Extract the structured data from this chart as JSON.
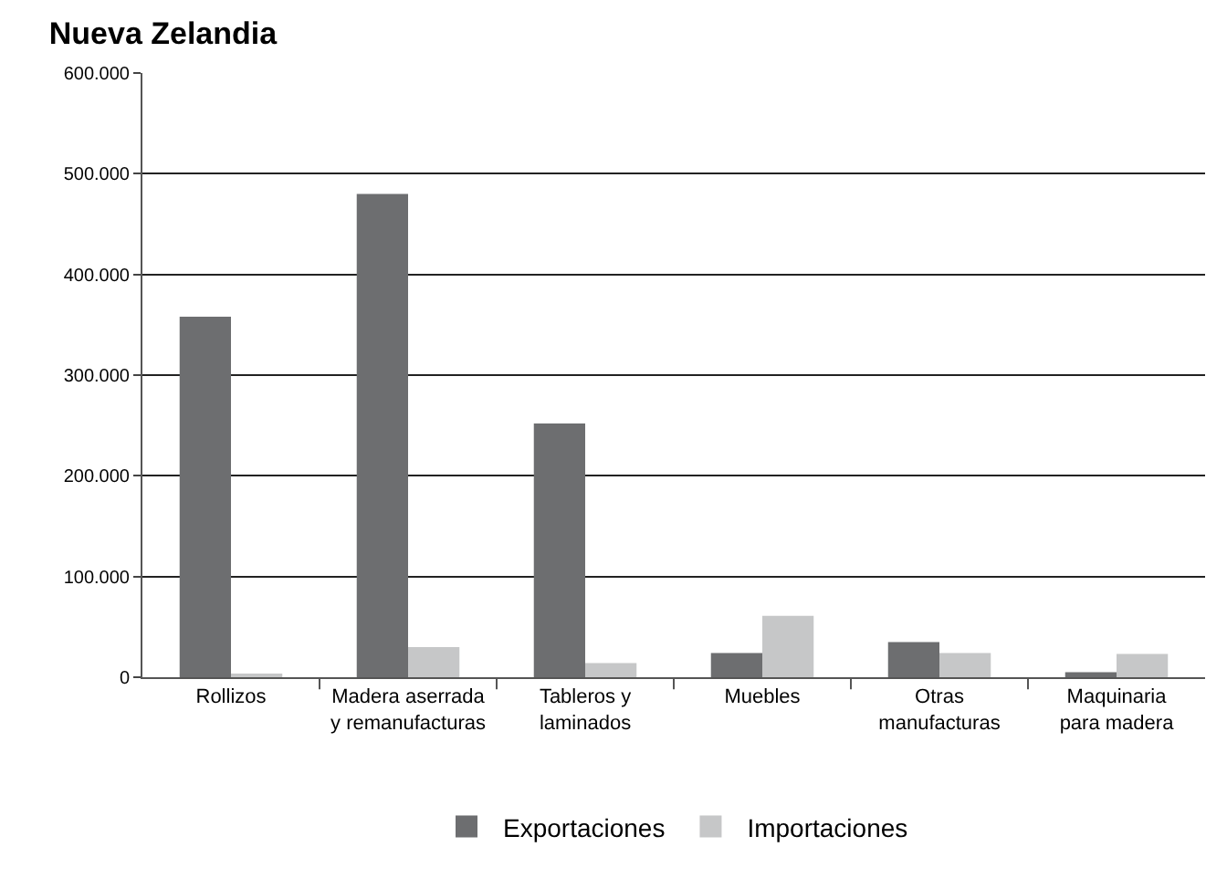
{
  "chart_data": {
    "type": "bar",
    "title": "Nueva Zelandia",
    "categories": [
      "Rollizos",
      "Madera aserrada\ny remanufacturas",
      "Tableros y\nlaminados",
      "Muebles",
      "Otras\nmanufacturas",
      "Maquinaria\npara madera"
    ],
    "series": [
      {
        "name": "Exportaciones",
        "color": "#6d6e70",
        "values": [
          358000,
          480000,
          252000,
          24000,
          35000,
          5000
        ]
      },
      {
        "name": "Importaciones",
        "color": "#c6c7c8",
        "values": [
          2000,
          30000,
          14000,
          61000,
          24000,
          23000
        ]
      }
    ],
    "ylim": [
      0,
      600000
    ],
    "yticks": [
      {
        "value": 0,
        "label": "0"
      },
      {
        "value": 100000,
        "label": "100.000"
      },
      {
        "value": 200000,
        "label": "200.000"
      },
      {
        "value": 300000,
        "label": "300.000"
      },
      {
        "value": 400000,
        "label": "400.000"
      },
      {
        "value": 500000,
        "label": "500.000"
      },
      {
        "value": 600000,
        "label": "600.000"
      }
    ],
    "grid": "y",
    "legend": "bottom"
  }
}
